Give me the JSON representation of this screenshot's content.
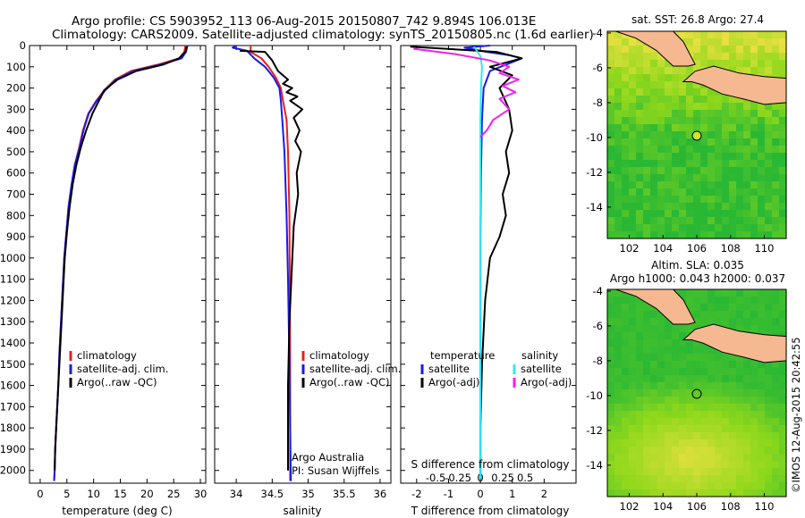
{
  "header": {
    "line1": "Argo profile: CS 5903952_113 06-Aug-2015 20150807_742 9.894S 106.013E",
    "line2": "Climatology: CARS2009. Satellite-adjusted climatology: synTS_20150805.nc (1.6d earlier)"
  },
  "colors": {
    "climatology": "#e8201c",
    "satellite": "#1a1ae8",
    "argo": "#000000",
    "sal_satellite": "#30e8f0",
    "sal_argo": "#f020f0",
    "land": "#f5b890"
  },
  "credit": "©IMOS 12-Aug-2015 20:42:55",
  "chart_data": [
    {
      "type": "line",
      "id": "temperature",
      "xlabel": "temperature (deg C)",
      "ylabel": "",
      "xlim": [
        -2,
        31
      ],
      "ylim": [
        2060,
        0
      ],
      "xticks": [
        0,
        5,
        10,
        15,
        20,
        25,
        30
      ],
      "yticks": [
        0,
        100,
        200,
        300,
        400,
        500,
        600,
        700,
        800,
        900,
        1000,
        1100,
        1200,
        1300,
        1400,
        1500,
        1600,
        1700,
        1800,
        1900,
        2000
      ],
      "legend": [
        "climatology",
        "satellite-adj. clim.",
        "Argo(..raw -QC)"
      ],
      "series": [
        {
          "name": "climatology",
          "color": "#e8201c",
          "x": [
            27.2,
            27,
            26,
            22,
            17,
            14,
            12,
            10.5,
            9,
            8,
            7.3,
            6.5,
            5.9,
            5.3,
            4.9,
            4.5,
            4.2,
            3.9,
            3.6,
            3.4,
            3.2,
            3.0,
            2.8,
            2.7,
            2.6
          ],
          "y": [
            0,
            30,
            60,
            90,
            120,
            160,
            210,
            260,
            320,
            400,
            480,
            560,
            650,
            760,
            880,
            1000,
            1150,
            1300,
            1450,
            1600,
            1700,
            1800,
            1900,
            2000,
            2050
          ]
        },
        {
          "name": "satellite-adj. clim.",
          "color": "#1a1ae8",
          "x": [
            27.6,
            27.3,
            26.5,
            22.5,
            17.5,
            14.2,
            12.2,
            10.6,
            9.1,
            8.1,
            7.4,
            6.5,
            5.9,
            5.3,
            4.9,
            4.5,
            4.2,
            3.9,
            3.6,
            3.4,
            3.2,
            3.0,
            2.8,
            2.7,
            2.6
          ],
          "y": [
            0,
            30,
            60,
            90,
            120,
            160,
            210,
            260,
            320,
            400,
            480,
            560,
            650,
            760,
            880,
            1000,
            1150,
            1300,
            1450,
            1600,
            1700,
            1800,
            1900,
            2000,
            2050
          ]
        },
        {
          "name": "Argo(..raw -QC)",
          "color": "#000000",
          "x": [
            27.4,
            27.2,
            26,
            23,
            18,
            14.5,
            12,
            11,
            9.8,
            8.6,
            7.6,
            6.8,
            6.1,
            5.5,
            5.0,
            4.6,
            4.3,
            4.0,
            3.7,
            3.4,
            3.2,
            3.0,
            2.8,
            2.7
          ],
          "y": [
            5,
            30,
            60,
            90,
            120,
            160,
            210,
            260,
            320,
            400,
            480,
            560,
            650,
            760,
            880,
            1000,
            1150,
            1300,
            1450,
            1600,
            1700,
            1800,
            1900,
            2000
          ]
        }
      ]
    },
    {
      "type": "line",
      "id": "salinity",
      "xlabel": "salinity",
      "ylabel": "",
      "xlim": [
        33.7,
        36.15
      ],
      "ylim": [
        2060,
        0
      ],
      "xticks": [
        34,
        34.5,
        35,
        35.5,
        36
      ],
      "legend": [
        "climatology",
        "satellite-adj. clim.",
        "Argo(..raw -QC)"
      ],
      "credit_lines": [
        "Argo Australia",
        "PI: Susan Wijffels"
      ],
      "series": [
        {
          "name": "climatology",
          "color": "#e8201c",
          "x": [
            34.2,
            34.2,
            34.35,
            34.45,
            34.55,
            34.62,
            34.65,
            34.7,
            34.72,
            34.74,
            34.75,
            34.75
          ],
          "y": [
            0,
            30,
            60,
            100,
            150,
            200,
            260,
            350,
            500,
            800,
            1500,
            2050
          ]
        },
        {
          "name": "satellite-adj. clim.",
          "color": "#1a1ae8",
          "x": [
            34.0,
            33.95,
            34.15,
            34.25,
            34.4,
            34.52,
            34.6,
            34.62,
            34.64,
            34.67,
            34.7,
            34.72,
            34.74,
            34.75,
            34.76
          ],
          "y": [
            0,
            10,
            25,
            60,
            100,
            150,
            200,
            260,
            350,
            500,
            800,
            1100,
            1500,
            1800,
            2050
          ]
        },
        {
          "name": "Argo(..raw -QC)",
          "color": "#000000",
          "x": [
            34.05,
            34.4,
            34.5,
            34.58,
            34.72,
            34.65,
            34.78,
            34.7,
            34.85,
            34.75,
            34.92,
            34.8,
            34.88,
            34.82,
            34.9,
            34.84,
            34.86,
            34.8,
            34.78,
            34.74,
            34.72,
            34.72
          ],
          "y": [
            25,
            30,
            70,
            120,
            160,
            180,
            200,
            220,
            240,
            260,
            300,
            340,
            400,
            450,
            500,
            600,
            700,
            850,
            1000,
            1300,
            1600,
            2000
          ]
        }
      ]
    },
    {
      "type": "line",
      "id": "difference",
      "xlabel": "T difference from climatology",
      "xlabel2": "S difference from climatology",
      "xlim": [
        -2.5,
        3.0
      ],
      "ylim": [
        2060,
        0
      ],
      "xticks": [
        -2,
        -1,
        0,
        1,
        2
      ],
      "xtick_labels": [
        "-2",
        "-1",
        "0",
        "1",
        "2"
      ],
      "sticks": [
        -0.5,
        -0.25,
        0,
        0.25,
        0.5
      ],
      "stick_labels": [
        "-0.5",
        "-0.25",
        "0",
        "0.25",
        "0.5"
      ],
      "legend_t_title": "temperature",
      "legend_s_title": "salinity",
      "legend_t": [
        "satellite",
        "Argo(-adj)"
      ],
      "legend_s": [
        "satellite",
        "Argo(-adj)"
      ],
      "series": [
        {
          "name": "T satellite",
          "color": "#1a1ae8",
          "x": [
            0.3,
            -0.5,
            0.2,
            0.9,
            1.3,
            0.8,
            0.3,
            0.1,
            0.05,
            0.02,
            0,
            0,
            0,
            0
          ],
          "y": [
            0,
            10,
            30,
            45,
            60,
            90,
            120,
            200,
            350,
            600,
            900,
            1300,
            1700,
            2040
          ]
        },
        {
          "name": "T Argo(-adj)",
          "color": "#000000",
          "x": [
            -2.2,
            0.5,
            1.3,
            0.3,
            1.0,
            0.6,
            0.9,
            1.0,
            0.8,
            0.9,
            0.7,
            0.8,
            0.6,
            0.3,
            0.15,
            0.05,
            0,
            0
          ],
          "y": [
            5,
            30,
            60,
            100,
            140,
            200,
            300,
            400,
            500,
            600,
            700,
            800,
            900,
            1000,
            1200,
            1500,
            1800,
            2040
          ]
        },
        {
          "name": "S satellite",
          "color": "#30e8f0",
          "x": [
            -0.2,
            0,
            0.05,
            0.02,
            0,
            0,
            0,
            0,
            0,
            0
          ],
          "y": [
            5,
            50,
            100,
            200,
            350,
            500,
            800,
            1200,
            1600,
            2040
          ]
        },
        {
          "name": "S Argo(-adj)",
          "color": "#f020f0",
          "x": [
            -2.1,
            -0.8,
            0.3,
            0.9,
            0.6,
            1.2,
            0.7,
            1.1,
            0.6,
            0.9,
            0.4,
            0.2,
            0
          ],
          "y": [
            15,
            40,
            70,
            100,
            130,
            160,
            190,
            220,
            250,
            300,
            350,
            400,
            430
          ]
        }
      ]
    },
    {
      "type": "heatmap",
      "id": "sst_map",
      "title": "sat. SST: 26.8  Argo: 27.4",
      "xlim": [
        100.7,
        111.3
      ],
      "ylim": [
        -15.8,
        -3.9
      ],
      "xticks": [
        102,
        104,
        106,
        108,
        110
      ],
      "yticks": [
        -4,
        -6,
        -8,
        -10,
        -12,
        -14
      ],
      "argo_position": [
        106.0,
        -9.9
      ]
    },
    {
      "type": "heatmap",
      "id": "sla_map",
      "title_lines": [
        "Altim. SLA: 0.035",
        "Argo h1000: 0.043 h2000: 0.037"
      ],
      "xlim": [
        100.7,
        111.3
      ],
      "ylim": [
        -15.8,
        -3.9
      ],
      "xticks": [
        102,
        104,
        106,
        108,
        110
      ],
      "yticks": [
        -4,
        -6,
        -8,
        -10,
        -12,
        -14
      ],
      "argo_position": [
        106.0,
        -9.9
      ]
    }
  ]
}
